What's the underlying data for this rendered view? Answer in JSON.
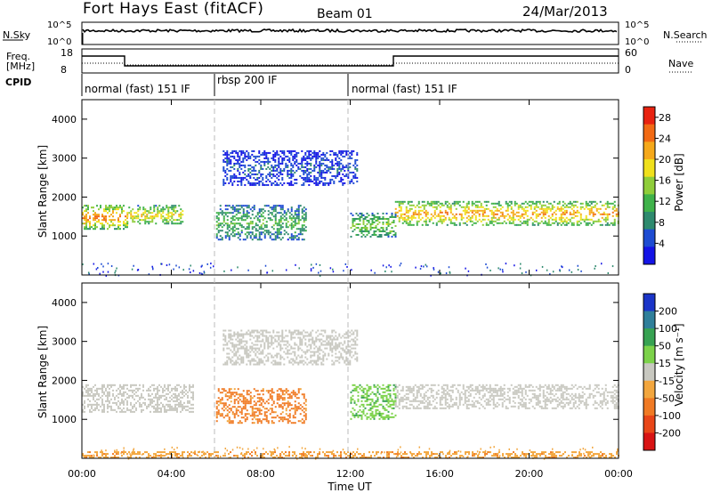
{
  "header": {
    "station": "Fort Hays East (fitACF)",
    "beam": "Beam 01",
    "date": "24/Mar/2013"
  },
  "strip_labels": {
    "nsky": "N.Sky",
    "nsky_top": "10^5",
    "nsky_bottom": "10^0",
    "nsearch": "N.Search",
    "nsearch_top": "10^5",
    "nsearch_bottom": "10^0",
    "freq_1": "Freq.",
    "freq_2": "[MHz]",
    "freq_top": "18",
    "freq_bottom": "8",
    "nave": "Nave",
    "nave_top": "60",
    "nave_bottom": "0",
    "cpid": "CPID"
  },
  "cpid_segments": [
    {
      "label": "normal (fast) 151 IF",
      "start_hour": 0,
      "end_hour": 6
    },
    {
      "label": "rbsp 200 IF",
      "start_hour": 6,
      "end_hour": 12
    },
    {
      "label": "normal (fast) 151 IF",
      "start_hour": 12,
      "end_hour": 24
    }
  ],
  "chart_data": [
    {
      "type": "heatmap",
      "name": "Power",
      "ylabel": "Slant Range [km]",
      "xlabel": "",
      "x_range_hours": [
        0,
        24
      ],
      "ylim_km": [
        0,
        4500
      ],
      "yticks": [
        "1000",
        "2000",
        "3000",
        "4000"
      ],
      "colorbar": {
        "label": "Power [dB]",
        "ticks": [
          "4",
          "8",
          "12",
          "16",
          "20",
          "24",
          "28"
        ],
        "range": [
          0,
          30
        ],
        "colors": [
          "#1414e6",
          "#1e4cd2",
          "#2e8a6e",
          "#3fb24a",
          "#8fcd3a",
          "#f0e01c",
          "#f5a81a",
          "#f26a14",
          "#e82210"
        ]
      },
      "echo_regions": [
        {
          "description": "ground scatter band",
          "start_hour": 0,
          "end_hour": 2,
          "range_km": [
            1200,
            1800
          ],
          "power_db": 22
        },
        {
          "description": "ground scatter band",
          "start_hour": 2,
          "end_hour": 4.5,
          "range_km": [
            1300,
            1800
          ],
          "power_db": 18
        },
        {
          "description": "rbsp patch",
          "start_hour": 6,
          "end_hour": 10,
          "range_km": [
            900,
            1800
          ],
          "power_db": 11
        },
        {
          "description": "upper echo",
          "start_hour": 6.3,
          "end_hour": 12.3,
          "range_km": [
            2300,
            3200
          ],
          "power_db": 5
        },
        {
          "description": "ground scatter band",
          "start_hour": 12,
          "end_hour": 14,
          "range_km": [
            1000,
            1600
          ],
          "power_db": 14
        },
        {
          "description": "ground scatter band",
          "start_hour": 14,
          "end_hour": 24,
          "range_km": [
            1300,
            1900
          ],
          "power_db": 21
        }
      ]
    },
    {
      "type": "heatmap",
      "name": "Velocity",
      "ylabel": "Slant Range [km]",
      "xlabel": "Time UT",
      "x_range_hours": [
        0,
        24
      ],
      "ylim_km": [
        0,
        4500
      ],
      "yticks": [
        "1000",
        "2000",
        "3000",
        "4000"
      ],
      "xticks": [
        "00:00",
        "04:00",
        "08:00",
        "12:00",
        "16:00",
        "20:00",
        "00:00"
      ],
      "colorbar": {
        "label": "Velocity [m s⁻¹]",
        "ticks": [
          "200",
          "100",
          "50",
          "15",
          "-15",
          "-50",
          "-100",
          "-200"
        ],
        "colors": [
          "#1b35c8",
          "#2f7f9a",
          "#37a252",
          "#7cd24a",
          "#c8c8c0",
          "#f2a63e",
          "#f07a24",
          "#e84618",
          "#d81414"
        ]
      },
      "echo_regions": [
        {
          "description": "ground scatter (grey)",
          "start_hour": 0,
          "end_hour": 5,
          "range_km": [
            1200,
            1900
          ],
          "velocity": 0
        },
        {
          "description": "rbsp patch",
          "start_hour": 6,
          "end_hour": 10,
          "range_km": [
            900,
            1800
          ],
          "velocity": -60
        },
        {
          "description": "upper echo",
          "start_hour": 6.3,
          "end_hour": 12.3,
          "range_km": [
            2400,
            3300
          ],
          "velocity": 0
        },
        {
          "description": "green echoes",
          "start_hour": 12,
          "end_hour": 14,
          "range_km": [
            1000,
            1900
          ],
          "velocity": 40
        },
        {
          "description": "ground scatter (grey)",
          "start_hour": 14,
          "end_hour": 24,
          "range_km": [
            1300,
            1900
          ],
          "velocity": 0
        },
        {
          "description": "near-range orange band",
          "start_hour": 0,
          "end_hour": 24,
          "range_km": [
            0,
            180
          ],
          "velocity": -40
        }
      ]
    }
  ]
}
